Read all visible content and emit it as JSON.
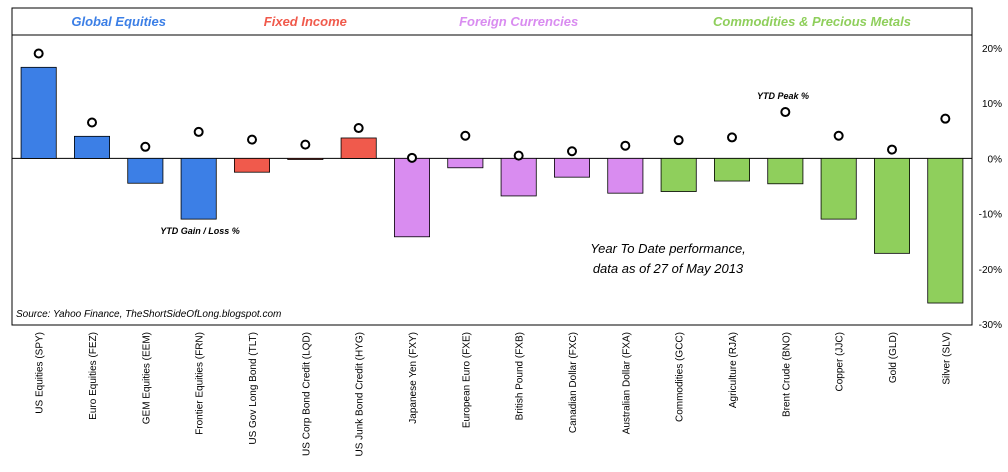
{
  "chart_data": {
    "type": "bar",
    "groups": [
      {
        "label": "Global Equities",
        "color": "#3c7fe6",
        "from": 0,
        "to": 3
      },
      {
        "label": "Fixed Income",
        "color": "#f05a4c",
        "from": 4,
        "to": 6
      },
      {
        "label": "Foreign Currencies",
        "color": "#d98cf0",
        "from": 7,
        "to": 11
      },
      {
        "label": "Commodities & Precious Metals",
        "color": "#8fcf5c",
        "from": 12,
        "to": 17
      }
    ],
    "categories": [
      "US Equities (SPY)",
      "Euro Equities (FEZ)",
      "GEM Equities (EEM)",
      "Frontier Equities (FRN)",
      "US Gov Long Bond (TLT)",
      "US Corp Bond Credit (LQD)",
      "US Junk Bond Credit (HYG)",
      "Japanese Yen (FXY)",
      "European Euro (FXE)",
      "British Pound (FXB)",
      "Canadian Dollar (FXC)",
      "Australian Dollar (FXA)",
      "Commodities (GCC)",
      "Agriculture (RJA)",
      "Brent Crude (BNO)",
      "Copper (JJC)",
      "Gold (GLD)",
      "Silver (SLV)"
    ],
    "series": [
      {
        "name": "YTD Gain / Loss %",
        "values": [
          16.5,
          4.0,
          -4.5,
          -11.0,
          -2.5,
          -0.2,
          3.7,
          -14.2,
          -1.7,
          -6.8,
          -3.4,
          -6.3,
          -6.0,
          -4.1,
          -4.6,
          -11.0,
          -17.2,
          -26.2
        ]
      },
      {
        "name": "YTD Peak %",
        "values": [
          19.0,
          6.5,
          2.1,
          4.8,
          3.4,
          2.5,
          5.5,
          0.1,
          4.1,
          0.5,
          1.3,
          2.3,
          3.3,
          3.8,
          8.4,
          4.1,
          1.6,
          7.2
        ]
      }
    ],
    "ylim": [
      -30,
      20
    ],
    "yticks": [
      "20%",
      "10%",
      "0%",
      "-10%",
      "-20%",
      "-30%"
    ],
    "annotations": {
      "gain_loss": "YTD Gain / Loss %",
      "peak": "YTD Peak %",
      "performance_line1": "Year To Date performance,",
      "performance_line2": "data as of 27 of May 2013",
      "source": "Source: Yahoo Finance, TheShortSideOfLong.blogspot.com"
    }
  }
}
